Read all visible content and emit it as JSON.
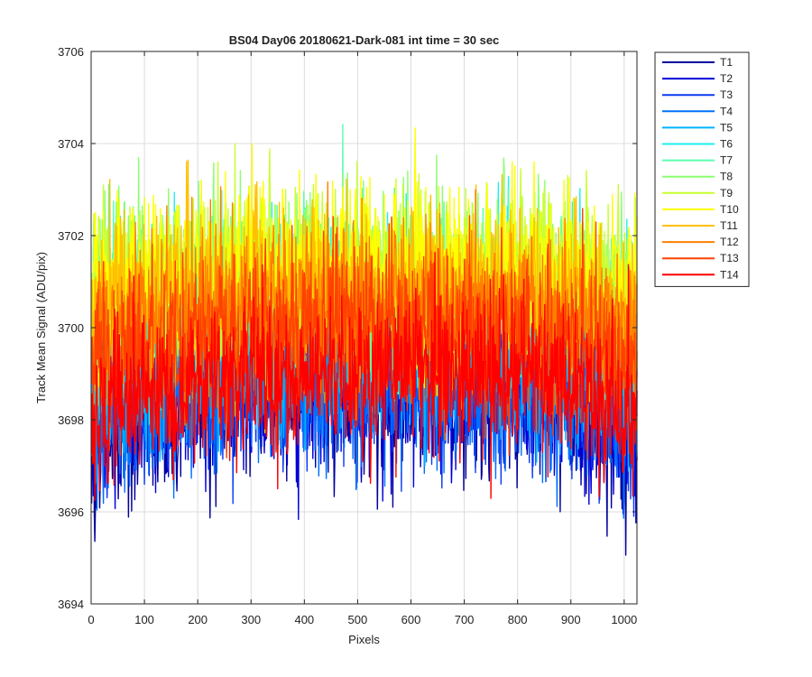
{
  "chart_data": {
    "type": "line",
    "title": "BS04 Day06 20180621-Dark-081 int time = 30 sec",
    "xlabel": "Pixels",
    "ylabel": "Track Mean Signal (ADU/pix)",
    "xlim": [
      0,
      1024
    ],
    "ylim": [
      3694,
      3706
    ],
    "xticks": [
      0,
      100,
      200,
      300,
      400,
      500,
      600,
      700,
      800,
      900,
      1000
    ],
    "yticks": [
      3694,
      3696,
      3698,
      3700,
      3702,
      3704,
      3706
    ],
    "grid": true,
    "legend_position": "outside-top-right",
    "series": [
      {
        "name": "T1",
        "color": "#00009b",
        "mean": 3698.6,
        "noise": 0.9,
        "edge_drop": 1.2
      },
      {
        "name": "T2",
        "color": "#0000d8",
        "mean": 3698.8,
        "noise": 0.9,
        "edge_drop": 1.1
      },
      {
        "name": "T3",
        "color": "#0a3cf0",
        "mean": 3699.0,
        "noise": 0.9,
        "edge_drop": 1.0
      },
      {
        "name": "T4",
        "color": "#0070ff",
        "mean": 3698.9,
        "noise": 0.95,
        "edge_drop": 1.0
      },
      {
        "name": "T5",
        "color": "#00b4ff",
        "mean": 3699.4,
        "noise": 0.9,
        "edge_drop": 0.8
      },
      {
        "name": "T6",
        "color": "#1ef0f0",
        "mean": 3700.6,
        "noise": 0.9,
        "edge_drop": 0.6
      },
      {
        "name": "T7",
        "color": "#5affb0",
        "mean": 3700.9,
        "noise": 0.9,
        "edge_drop": 0.5
      },
      {
        "name": "T8",
        "color": "#8cff70",
        "mean": 3701.0,
        "noise": 0.9,
        "edge_drop": 0.5
      },
      {
        "name": "T9",
        "color": "#c8ff30",
        "mean": 3701.3,
        "noise": 0.9,
        "edge_drop": 0.5
      },
      {
        "name": "T10",
        "color": "#ffff00",
        "mean": 3701.2,
        "noise": 0.95,
        "edge_drop": 0.5
      },
      {
        "name": "T11",
        "color": "#ffc000",
        "mean": 3700.8,
        "noise": 0.9,
        "edge_drop": 0.6
      },
      {
        "name": "T12",
        "color": "#ff7f00",
        "mean": 3700.4,
        "noise": 0.9,
        "edge_drop": 0.7
      },
      {
        "name": "T13",
        "color": "#ff4000",
        "mean": 3699.9,
        "noise": 0.9,
        "edge_drop": 0.9
      },
      {
        "name": "T14",
        "color": "#ff0000",
        "mean": 3699.0,
        "noise": 0.85,
        "edge_drop": 1.2
      }
    ]
  }
}
